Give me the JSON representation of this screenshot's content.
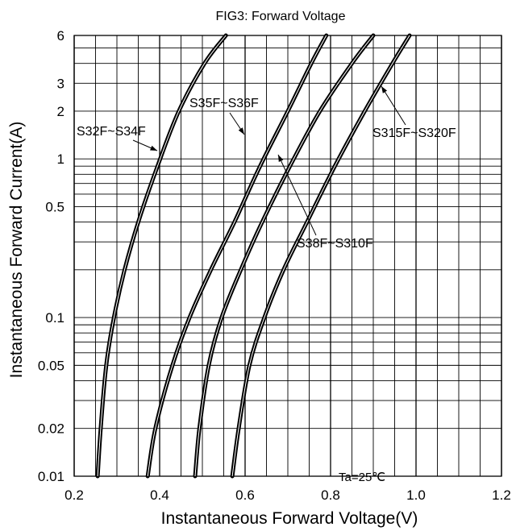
{
  "chart_data": {
    "type": "line",
    "title": "FIG3: Forward Voltage",
    "xlabel": "Instantaneous Forward Voltage(V)",
    "ylabel": "Instantaneous Forward Current(A)",
    "x_scale": "linear",
    "y_scale": "log",
    "xlim": [
      0.2,
      1.2
    ],
    "ylim": [
      0.01,
      6
    ],
    "x_ticks": [
      {
        "value": 0.2,
        "label": "0.2"
      },
      {
        "value": 0.4,
        "label": "0.4"
      },
      {
        "value": 0.6,
        "label": "0.6"
      },
      {
        "value": 0.8,
        "label": "0.8"
      },
      {
        "value": 1.0,
        "label": "1.0"
      },
      {
        "value": 1.2,
        "label": "1.2"
      }
    ],
    "y_ticks": [
      {
        "value": 0.01,
        "label": "0.01"
      },
      {
        "value": 0.02,
        "label": "0.02"
      },
      {
        "value": 0.05,
        "label": "0.05"
      },
      {
        "value": 0.1,
        "label": "0.1"
      },
      {
        "value": 0.5,
        "label": "0.5"
      },
      {
        "value": 1,
        "label": "1"
      },
      {
        "value": 2,
        "label": "2"
      },
      {
        "value": 3,
        "label": "3"
      },
      {
        "value": 6,
        "label": "6"
      }
    ],
    "grid": true,
    "series": [
      {
        "name": "S32F~S34F",
        "x": [
          0.255,
          0.262,
          0.275,
          0.293,
          0.318,
          0.35,
          0.395,
          0.445,
          0.505,
          0.555
        ],
        "y": [
          0.01,
          0.02,
          0.05,
          0.1,
          0.2,
          0.4,
          0.9,
          2,
          4,
          6
        ]
      },
      {
        "name": "S35F~S36F",
        "x": [
          0.372,
          0.39,
          0.43,
          0.47,
          0.52,
          0.575,
          0.635,
          0.7,
          0.755,
          0.79
        ],
        "y": [
          0.01,
          0.02,
          0.05,
          0.1,
          0.2,
          0.4,
          0.9,
          2,
          4,
          6
        ]
      },
      {
        "name": "S38F~S310F",
        "x": [
          0.483,
          0.493,
          0.515,
          0.545,
          0.59,
          0.64,
          0.705,
          0.775,
          0.85,
          0.9
        ],
        "y": [
          0.01,
          0.02,
          0.05,
          0.1,
          0.2,
          0.4,
          0.9,
          2,
          4,
          6
        ]
      },
      {
        "name": "S315F~S320F",
        "x": [
          0.57,
          0.585,
          0.61,
          0.645,
          0.69,
          0.745,
          0.81,
          0.88,
          0.945,
          0.985
        ],
        "y": [
          0.01,
          0.02,
          0.05,
          0.1,
          0.2,
          0.4,
          0.9,
          2,
          4,
          6
        ]
      }
    ],
    "annotations": [
      "Ta=25℃"
    ]
  }
}
